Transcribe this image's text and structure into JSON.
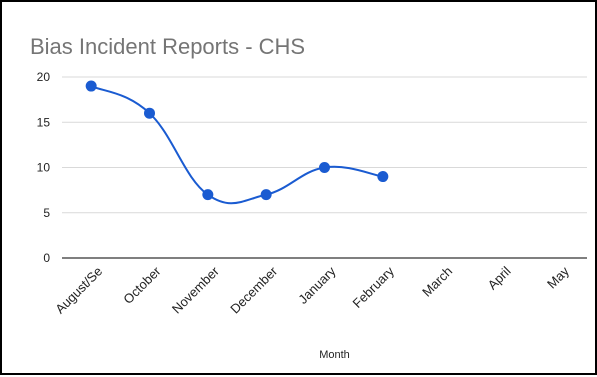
{
  "chart_data": {
    "type": "line",
    "title": "Bias Incident Reports - CHS",
    "xlabel": "Month",
    "ylabel": "",
    "categories": [
      "August/Se",
      "October",
      "November",
      "December",
      "January",
      "February",
      "March",
      "April",
      "May"
    ],
    "series": [
      {
        "values": [
          19,
          16,
          7,
          7,
          10,
          9,
          null,
          null,
          null
        ]
      }
    ],
    "ylim": [
      0,
      20
    ],
    "yticks": [
      0,
      5,
      10,
      15,
      20
    ],
    "grid": true,
    "legend": "none",
    "smooth": true,
    "colors": {
      "line": "#1a5bd1",
      "grid": "#d9d9d9",
      "axis": "#333333"
    }
  }
}
